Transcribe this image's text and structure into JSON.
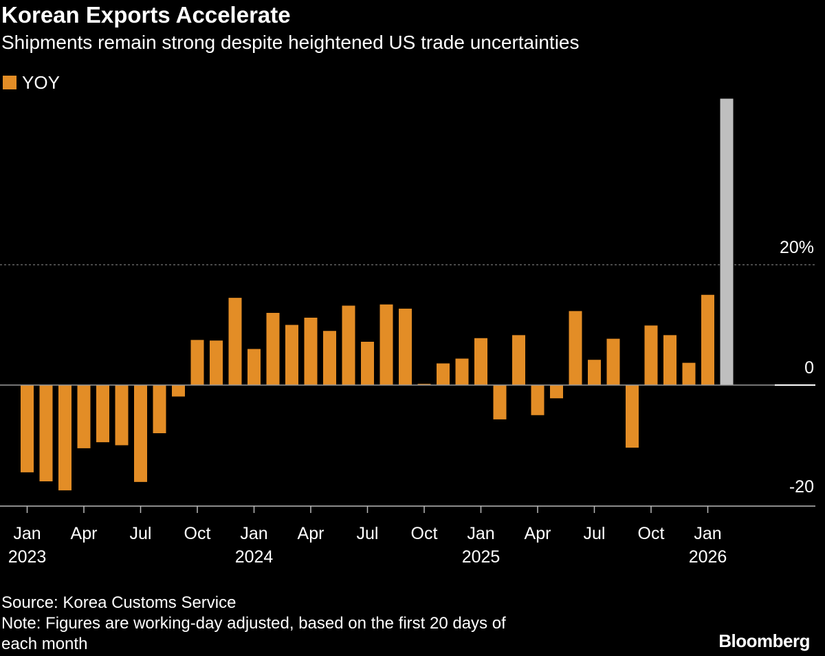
{
  "header": {
    "title": "Korean Exports Accelerate",
    "subtitle": "Shipments remain strong despite heightened US trade uncertainties"
  },
  "legend": {
    "label": "YOY",
    "color": "#E38D26"
  },
  "footer": {
    "source": "Source: Korea Customs Service",
    "note_line1": "Note: Figures are working-day adjusted, based on the first 20 days of",
    "note_line2": "each month",
    "brand": "Bloomberg"
  },
  "chart_data": {
    "type": "bar",
    "title": "Korean Exports Accelerate",
    "subtitle": "Shipments remain strong despite heightened US trade uncertainties",
    "xlabel": "",
    "ylabel": "",
    "ylim": [
      -20,
      40
    ],
    "y_ticks": [
      {
        "value": 20,
        "label": "20%"
      },
      {
        "value": 0,
        "label": "0"
      },
      {
        "value": -20,
        "label": "-20"
      }
    ],
    "grid": "dotted line at 20%",
    "legend_position": "top-left",
    "colors": {
      "series": "#E38D26",
      "highlight": "#BFBFBF",
      "zero_line": "#9A9A9A",
      "gridline": "#777777",
      "axis": "#BBBBBB",
      "text": "#FFFFFF"
    },
    "categories": [
      "Jan 2023",
      "Feb 2023",
      "Mar 2023",
      "Apr 2023",
      "May 2023",
      "Jun 2023",
      "Jul 2023",
      "Aug 2023",
      "Sep 2023",
      "Oct 2023",
      "Nov 2023",
      "Dec 2023",
      "Jan 2024",
      "Feb 2024",
      "Mar 2024",
      "Apr 2024",
      "May 2024",
      "Jun 2024",
      "Jul 2024",
      "Aug 2024",
      "Sep 2024",
      "Oct 2024",
      "Nov 2024",
      "Dec 2024",
      "Jan 2025",
      "Feb 2025",
      "Mar 2025",
      "Apr 2025",
      "May 2025",
      "Jun 2025",
      "Jul 2025",
      "Aug 2025",
      "Sep 2025",
      "Oct 2025",
      "Nov 2025",
      "Dec 2025",
      "Jan 2026",
      "Feb 2026"
    ],
    "series": [
      {
        "name": "YOY",
        "values": [
          -14.5,
          -16.0,
          -17.5,
          -10.5,
          -9.5,
          -10.0,
          -16.1,
          -8.0,
          -1.9,
          7.5,
          7.4,
          14.5,
          6.0,
          12.0,
          10.0,
          11.2,
          9.0,
          13.2,
          7.2,
          13.4,
          12.7,
          0.2,
          3.6,
          4.4,
          7.8,
          -5.7,
          8.3,
          -5.0,
          -2.2,
          12.3,
          4.2,
          7.7,
          -10.4,
          9.9,
          8.3,
          3.7,
          15.0,
          47.6
        ]
      }
    ],
    "highlight": {
      "category": "Feb 2026",
      "value": 47.6,
      "color": "#BFBFBF"
    },
    "x_tick_labels": [
      {
        "index": 0,
        "month": "Jan",
        "year": "2023"
      },
      {
        "index": 3,
        "month": "Apr",
        "year": ""
      },
      {
        "index": 6,
        "month": "Jul",
        "year": ""
      },
      {
        "index": 9,
        "month": "Oct",
        "year": ""
      },
      {
        "index": 12,
        "month": "Jan",
        "year": "2024"
      },
      {
        "index": 15,
        "month": "Apr",
        "year": ""
      },
      {
        "index": 18,
        "month": "Jul",
        "year": ""
      },
      {
        "index": 21,
        "month": "Oct",
        "year": ""
      },
      {
        "index": 24,
        "month": "Jan",
        "year": "2025"
      },
      {
        "index": 27,
        "month": "Apr",
        "year": ""
      },
      {
        "index": 30,
        "month": "Jul",
        "year": ""
      },
      {
        "index": 33,
        "month": "Oct",
        "year": ""
      },
      {
        "index": 36,
        "month": "Jan",
        "year": "2026"
      }
    ]
  }
}
